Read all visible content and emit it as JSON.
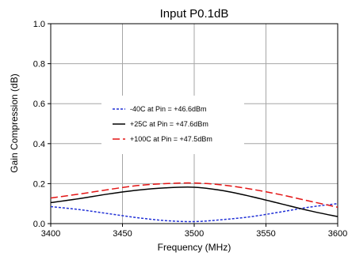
{
  "chart_data": {
    "type": "line",
    "title": "Input P0.1dB",
    "xlabel": "Frequency (MHz)",
    "ylabel": "Gain Compression (dB)",
    "xlim": [
      3400,
      3600
    ],
    "ylim": [
      0.0,
      1.0
    ],
    "xticks": [
      3400,
      3450,
      3500,
      3550,
      3600
    ],
    "yticks": [
      0.0,
      0.2,
      0.4,
      0.6,
      0.8,
      1.0
    ],
    "xtick_labels": [
      "3400",
      "3450",
      "3500",
      "3550",
      "3600"
    ],
    "ytick_labels": [
      "0.0",
      "0.2",
      "0.4",
      "0.6",
      "0.8",
      "1.0"
    ],
    "grid": true,
    "legend_position": "center",
    "series": [
      {
        "name": "-40C at Pin = +46.6dBm",
        "color": "#1f2fd6",
        "dash": "dotted",
        "x": [
          3400,
          3420,
          3440,
          3460,
          3480,
          3500,
          3520,
          3540,
          3560,
          3580,
          3600
        ],
        "y": [
          0.085,
          0.07,
          0.05,
          0.03,
          0.015,
          0.01,
          0.02,
          0.035,
          0.058,
          0.082,
          0.1
        ]
      },
      {
        "name": "+25C at Pin = +47.6dBm",
        "color": "#000000",
        "dash": "solid",
        "x": [
          3400,
          3420,
          3440,
          3460,
          3480,
          3500,
          3520,
          3540,
          3560,
          3580,
          3600
        ],
        "y": [
          0.105,
          0.125,
          0.148,
          0.167,
          0.179,
          0.182,
          0.165,
          0.135,
          0.1,
          0.065,
          0.035
        ]
      },
      {
        "name": "+100C at Pin = +47.5dBm",
        "color": "#e31414",
        "dash": "dashed",
        "x": [
          3400,
          3420,
          3440,
          3460,
          3480,
          3500,
          3520,
          3540,
          3560,
          3580,
          3600
        ],
        "y": [
          0.128,
          0.148,
          0.17,
          0.19,
          0.2,
          0.203,
          0.193,
          0.172,
          0.145,
          0.113,
          0.082
        ]
      }
    ]
  }
}
